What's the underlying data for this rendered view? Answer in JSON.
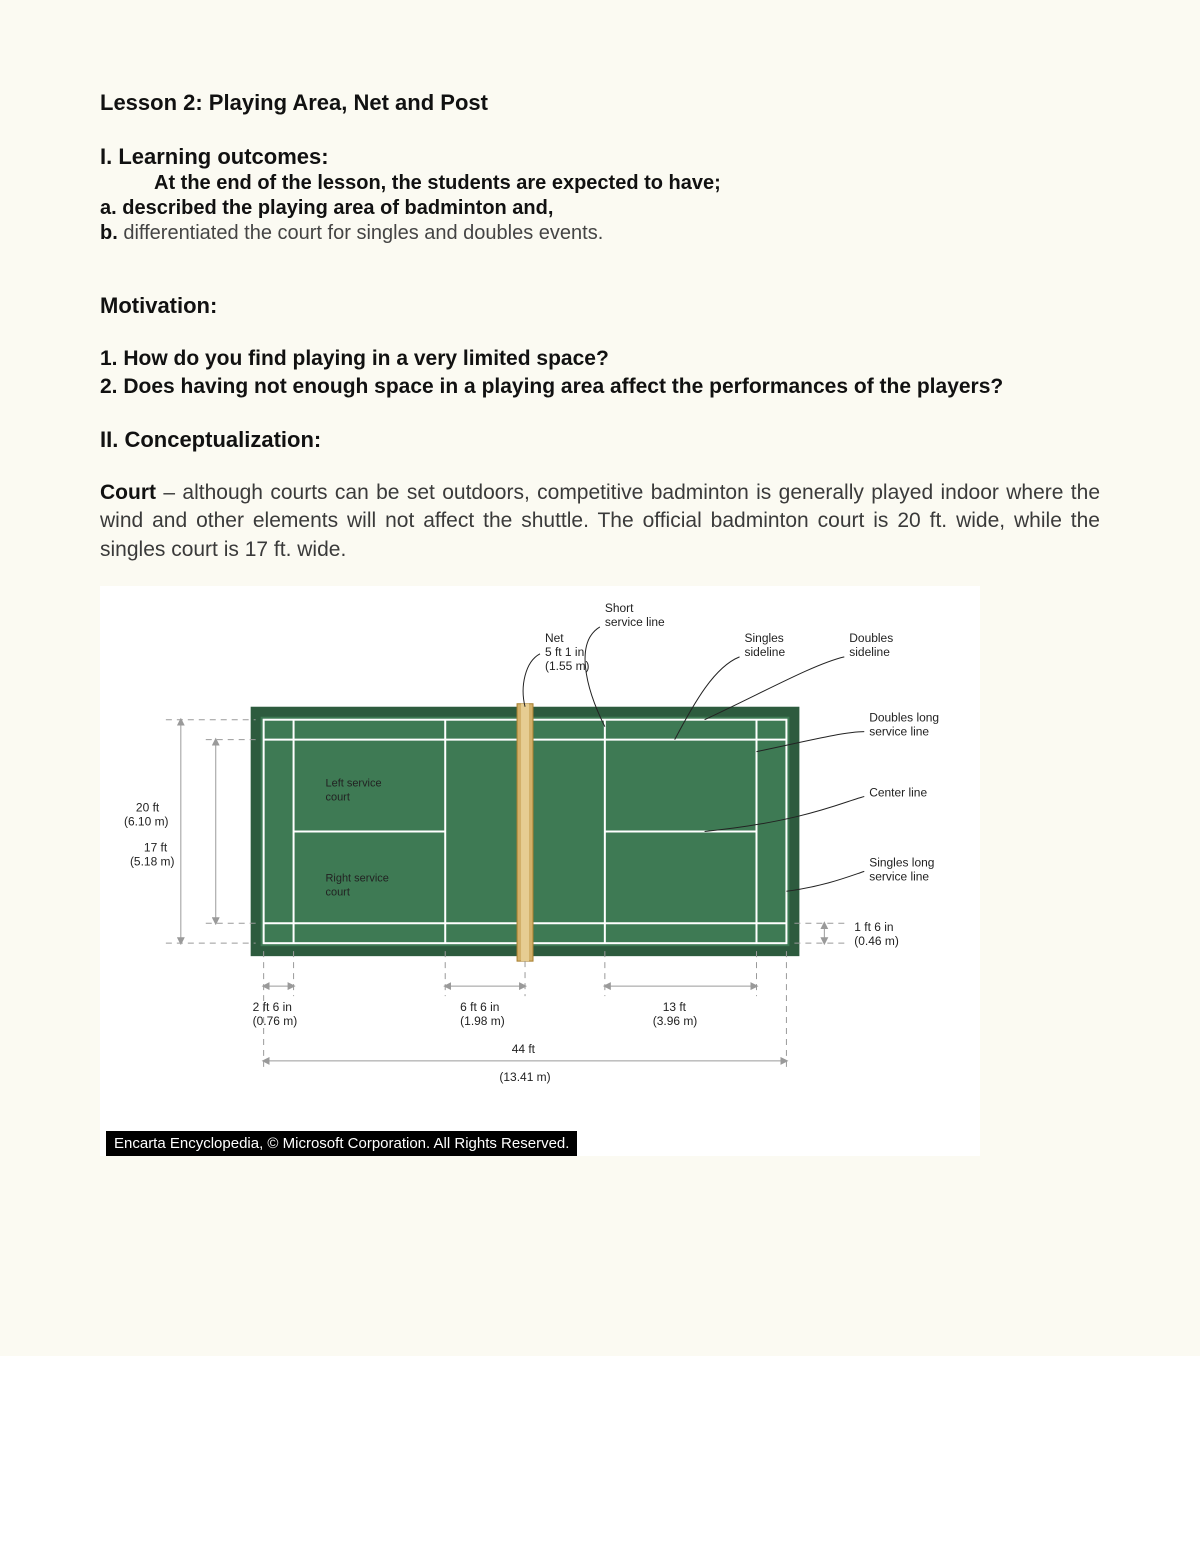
{
  "title": "Lesson 2:   Playing Area, Net and Post",
  "learning_outcomes_heading": "I. Learning outcomes:",
  "learning_intro": "At the end of the lesson, the students are expected to have;",
  "item_a": "a. described the playing area of badminton and,",
  "item_b_prefix": "b.",
  "item_b_text": " differentiated the court for singles and doubles events.",
  "motivation_heading": "Motivation:",
  "q1": "1. How do you find playing in a very limited space?",
  "q2": "2. Does having not enough space in a playing area affect the performances of the players?",
  "concept_heading": "II. Conceptualization:",
  "court_lead": "Court",
  "court_text": " – although courts can be set outdoors, competitive badminton is generally played indoor where the wind and other elements will not affect the shuttle. The official badminton court is 20 ft. wide, while the singles court is 17 ft. wide.",
  "caption": "Encarta Encyclopedia, © Microsoft Corporation. All Rights Reserved.",
  "diagram": {
    "type": "court-diagram",
    "colors": {
      "court_fill": "#3e7a54",
      "court_border": "#2d5b3e",
      "line": "#ffffff",
      "net_fill": "#d2b069",
      "net_edge": "#a87f2f",
      "dim_line": "#9a9a9a",
      "label_text": "#222222",
      "leader_line": "#222222",
      "bg": "#ffffff"
    },
    "left_court_label": "Left service court",
    "right_court_label": "Right service court",
    "callouts": {
      "short_service": "Short service line",
      "net": "Net 5 ft 1 in (1.55 m)",
      "net_l1": "Net",
      "net_l2": "5 ft 1 in",
      "net_l3": "(1.55 m)",
      "singles_side": "Singles sideline",
      "doubles_side": "Doubles sideline",
      "doubles_long": "Doubles long service line",
      "center_line": "Center line",
      "singles_long": "Singles long service line"
    },
    "dims_left": {
      "outer": {
        "ft": "20 ft",
        "m": "(6.10 m)"
      },
      "inner": {
        "ft": "17 ft",
        "m": "(5.18 m)"
      }
    },
    "dims_right_small": {
      "ft": "1 ft  6 in",
      "m": "(0.46 m)"
    },
    "dims_bottom": {
      "a": {
        "ft": "2 ft 6 in",
        "m": "(0.76 m)"
      },
      "b": {
        "ft": "6 ft 6 in",
        "m": "(1.98 m)"
      },
      "c": {
        "ft": "13 ft",
        "m": "(3.96 m)"
      },
      "total": {
        "ft": "44 ft",
        "m": "(13.41 m)"
      }
    }
  }
}
